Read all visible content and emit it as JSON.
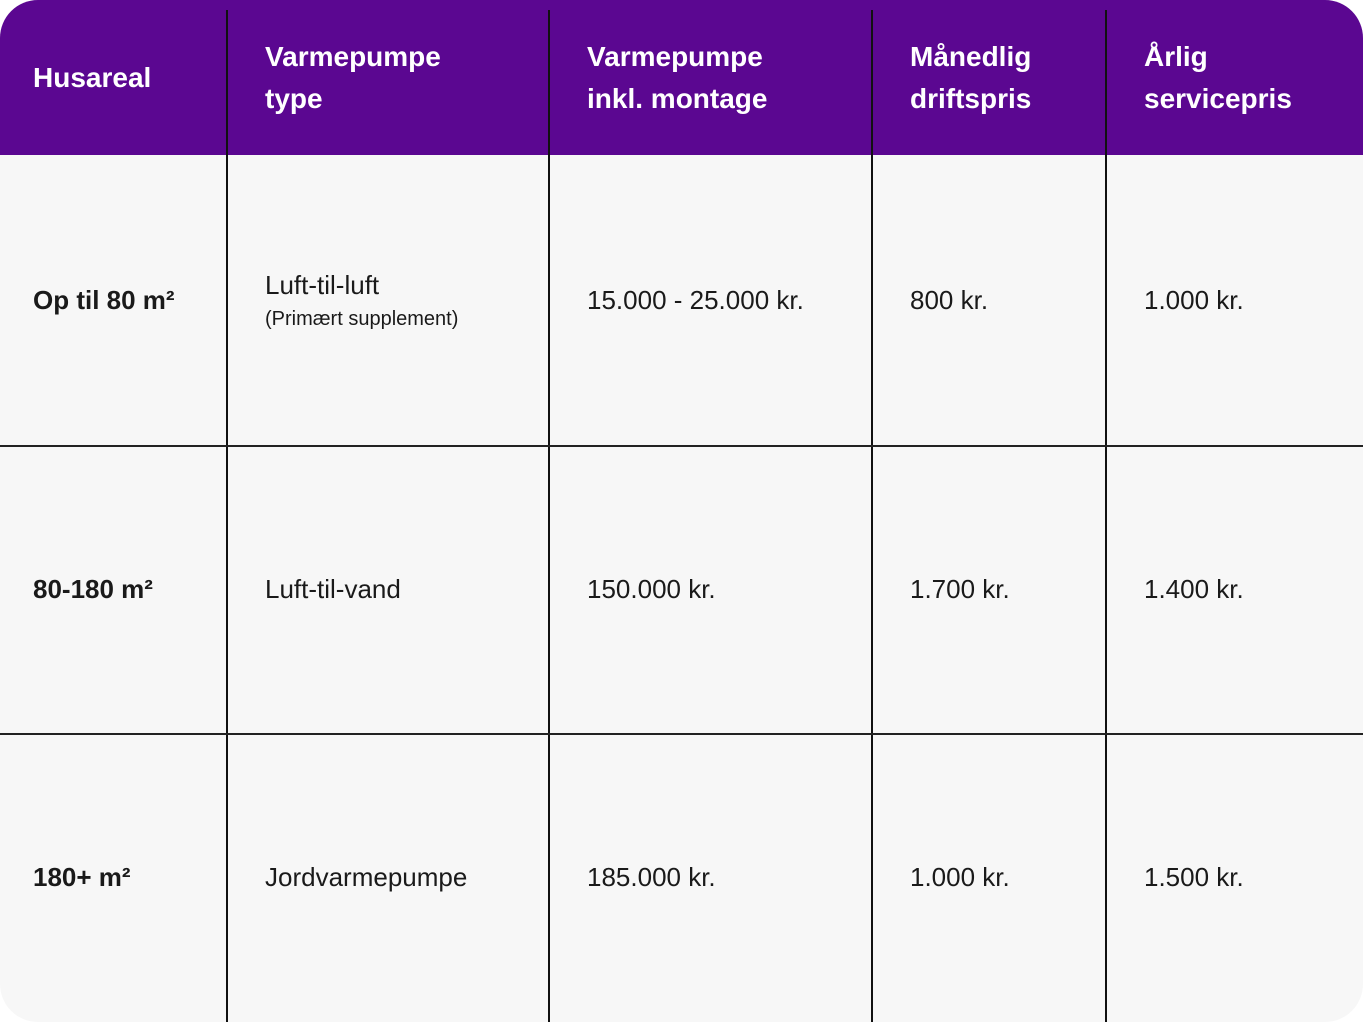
{
  "table": {
    "headers": [
      {
        "line1": "Husareal",
        "line2": ""
      },
      {
        "line1": "Varmepumpe",
        "line2": "type"
      },
      {
        "line1": "Varmepumpe",
        "line2": "inkl. montage"
      },
      {
        "line1": "Månedlig",
        "line2": "driftspris"
      },
      {
        "line1": "Årlig",
        "line2": "servicepris"
      }
    ],
    "rows": [
      {
        "husareal": "Op til 80 m²",
        "type": "Luft-til-luft",
        "type_note": "(Primært supplement)",
        "montage": "15.000 - 25.000 kr.",
        "drift": "800 kr.",
        "service": "1.000 kr."
      },
      {
        "husareal": "80-180 m²",
        "type": "Luft-til-vand",
        "type_note": "",
        "montage": "150.000 kr.",
        "drift": "1.700 kr.",
        "service": "1.400 kr."
      },
      {
        "husareal": "180+ m²",
        "type": "Jordvarmepumpe",
        "type_note": "",
        "montage": "185.000 kr.",
        "drift": "1.000 kr.",
        "service": "1.500 kr."
      }
    ]
  },
  "chart_data": {
    "type": "table",
    "columns": [
      "Husareal",
      "Varmepumpe type",
      "Varmepumpe inkl. montage",
      "Månedlig driftspris",
      "Årlig servicepris"
    ],
    "rows": [
      [
        "Op til 80 m²",
        "Luft-til-luft (Primært supplement)",
        "15.000 - 25.000 kr.",
        "800 kr.",
        "1.000 kr."
      ],
      [
        "80-180 m²",
        "Luft-til-vand",
        "150.000 kr.",
        "1.700 kr.",
        "1.400 kr."
      ],
      [
        "180+ m²",
        "Jordvarmepumpe",
        "185.000 kr.",
        "1.000 kr.",
        "1.500 kr."
      ]
    ],
    "title": "",
    "legend": "none",
    "grid": "on"
  },
  "colors": {
    "header_bg": "#5B0791",
    "body_bg": "#F7F7F7",
    "grid_line": "#111111",
    "row_line": "#222222",
    "text": "#1A1A1A",
    "header_text": "#FFFFFF",
    "page_bg": "#FFFFFF"
  }
}
